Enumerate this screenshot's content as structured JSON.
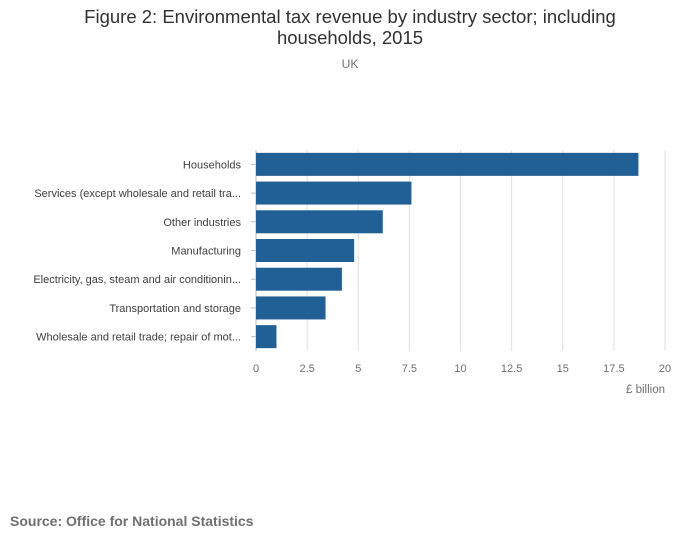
{
  "chart_data": {
    "type": "bar",
    "orientation": "horizontal",
    "title": "Figure 2: Environmental tax revenue by industry sector; including households, 2015",
    "subtitle": "UK",
    "categories": [
      "Households",
      "Services (except wholesale and retail tra...",
      "Other industries",
      "Manufacturing",
      "Electricity, gas, steam and air conditionin...",
      "Transportation and storage",
      "Wholesale and retail trade; repair of mot..."
    ],
    "values": [
      18.7,
      7.6,
      6.2,
      4.8,
      4.2,
      3.4,
      1.0
    ],
    "xlabel": "£ billion",
    "ylabel": "",
    "xlim": [
      0,
      20
    ],
    "xticks": [
      "0",
      "2.5",
      "5",
      "7.5",
      "10",
      "12.5",
      "15",
      "17.5",
      "20"
    ],
    "grid": true,
    "bar_color": "#206095"
  },
  "source": "Source: Office for National Statistics"
}
